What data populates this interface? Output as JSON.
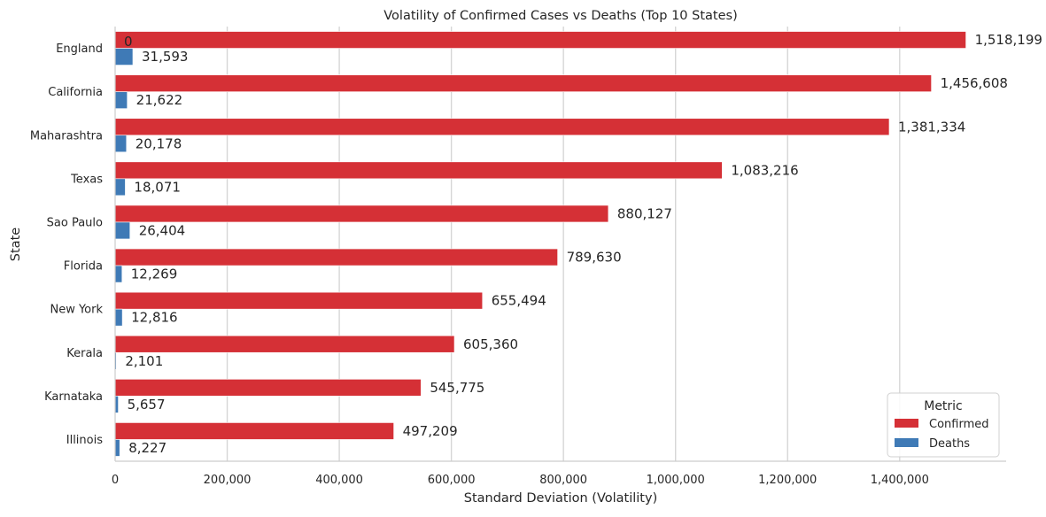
{
  "chart_data": {
    "type": "bar",
    "orientation": "horizontal",
    "title": "Volatility of Confirmed Cases vs Deaths (Top 10 States)",
    "xlabel": "Standard Deviation (Volatility)",
    "ylabel": "State",
    "xlim": [
      0,
      1590000
    ],
    "x_ticks": [
      0,
      200000,
      400000,
      600000,
      800000,
      1000000,
      1200000,
      1400000
    ],
    "x_tick_labels": [
      "0",
      "200,000",
      "400,000",
      "600,000",
      "800,000",
      "1,000,000",
      "1,200,000",
      "1,400,000"
    ],
    "grid": "vertical",
    "categories": [
      "England",
      "California",
      "Maharashtra",
      "Texas",
      "Sao Paulo",
      "Florida",
      "New York",
      "Kerala",
      "Karnataka",
      "Illinois"
    ],
    "series": [
      {
        "name": "Confirmed",
        "color": "#d53036",
        "values": [
          1518199,
          1456608,
          1381334,
          1083216,
          880127,
          789630,
          655494,
          605360,
          545775,
          497209
        ],
        "labels": [
          "1,518,199",
          "1,456,608",
          "1,381,334",
          "1,083,216",
          "880,127",
          "789,630",
          "655,494",
          "605,360",
          "545,775",
          "497,209"
        ]
      },
      {
        "name": "Deaths",
        "color": "#3f7ab6",
        "values": [
          31593,
          21622,
          20178,
          18071,
          26404,
          12269,
          12816,
          2101,
          5657,
          8227
        ],
        "labels": [
          "31,593",
          "21,622",
          "20,178",
          "18,071",
          "26,404",
          "12,269",
          "12,816",
          "2,101",
          "5,657",
          "8,227"
        ]
      }
    ],
    "extra_annotations": [
      {
        "text": "0",
        "category": "England",
        "value": 0
      }
    ],
    "legend": {
      "title": "Metric",
      "position": "bottom-right",
      "entries": [
        "Confirmed",
        "Deaths"
      ]
    }
  }
}
